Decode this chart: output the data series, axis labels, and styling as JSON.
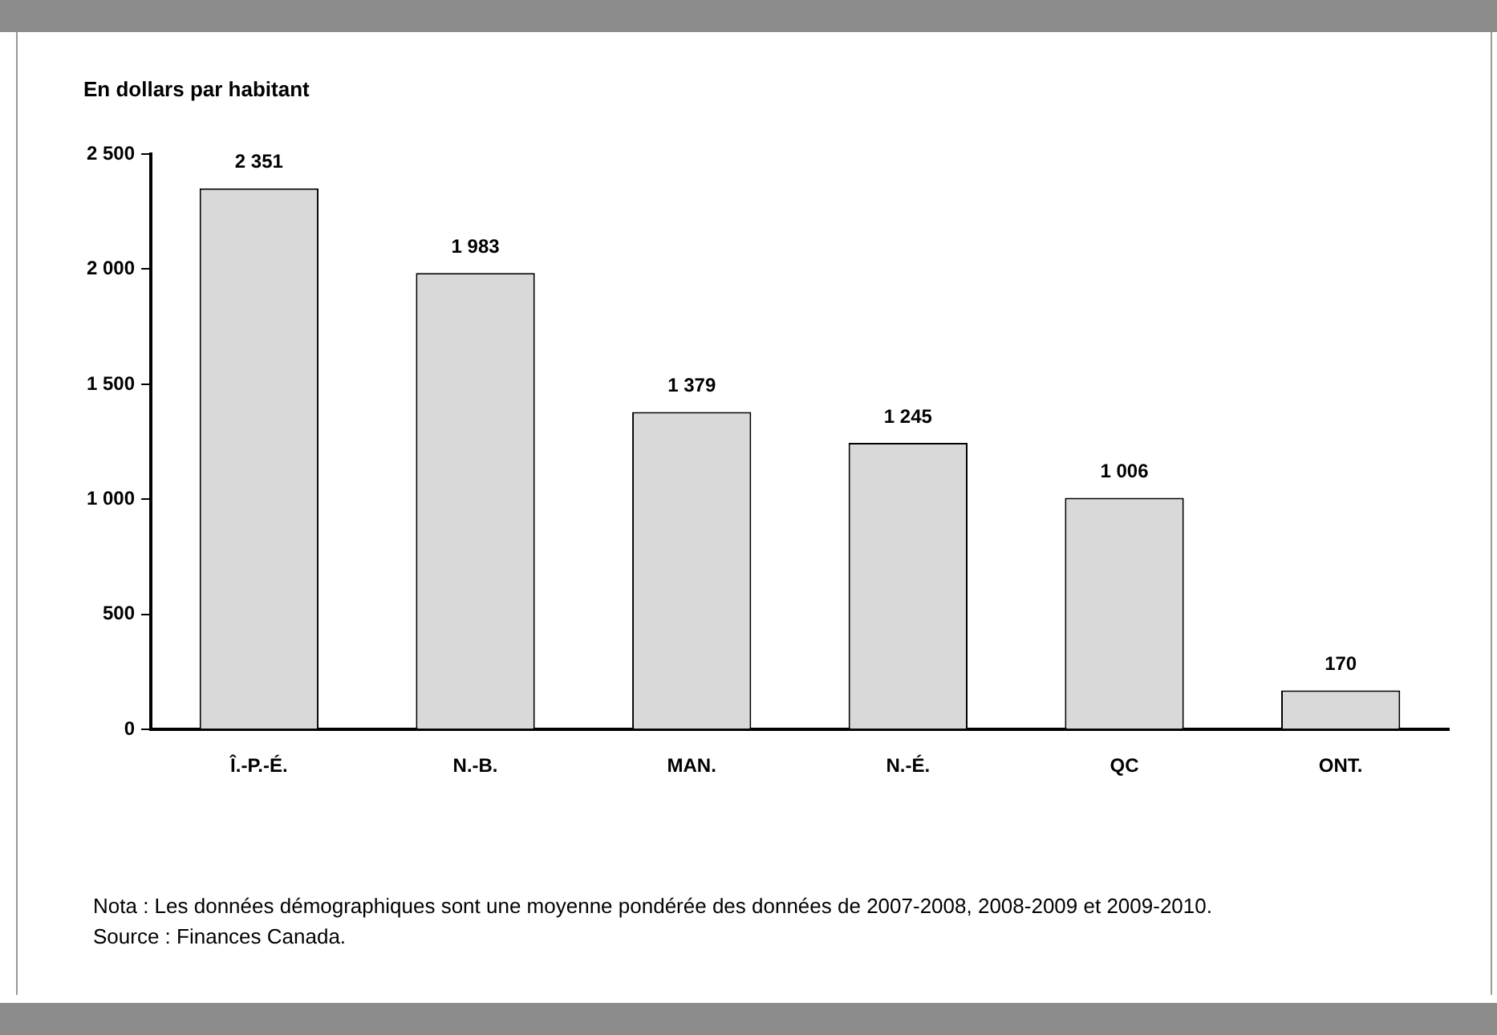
{
  "chart_data": {
    "type": "bar",
    "ylabel": "En dollars par habitant",
    "categories": [
      "Î.-P.-É.",
      "N.-B.",
      "MAN.",
      "N.-É.",
      "QC",
      "ONT."
    ],
    "values": [
      2351,
      1983,
      1379,
      1245,
      1006,
      170
    ],
    "value_labels": [
      "2 351",
      "1 983",
      "1 379",
      "1 245",
      "1 006",
      "170"
    ],
    "color": "#d9d9d9",
    "ylim": [
      0,
      2500
    ],
    "yticks": [
      0,
      {
        "value": 500,
        "label": "500"
      },
      {
        "value": 1000,
        "label": "1 000"
      },
      {
        "value": 1500,
        "label": "1 500"
      },
      {
        "value": 2000,
        "label": "2 000"
      },
      {
        "value": 2500,
        "label": "2 500"
      }
    ],
    "grid": false,
    "legend": false,
    "annotations": [
      "Nota : Les données démographiques sont une moyenne pondérée des données de 2007-2008, 2008-2009 et 2009-2010.",
      "Source : Finances Canada."
    ]
  }
}
